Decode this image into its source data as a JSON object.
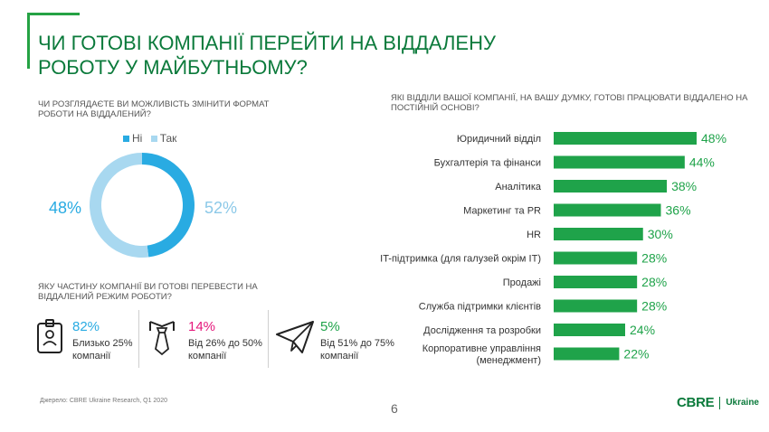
{
  "title": "ЧИ ГОТОВІ КОМПАНІЇ ПЕРЕЙТИ НА ВІДДАЛЕНУ РОБОТУ У МАЙБУТНЬОМУ?",
  "colors": {
    "brand": "#0b7a3b",
    "bar": "#1fa34a",
    "no": "#29abe2",
    "yes": "#a8d8f0",
    "pink": "#e5177b"
  },
  "donut": {
    "question": "ЧИ РОЗГЛЯДАЄТЕ ВИ МОЖЛИВІСТЬ ЗМІНИТИ ФОРМАТ РОБОТИ НА ВІДДАЛЕНИЙ?",
    "legend_no": "Ні",
    "legend_yes": "Так",
    "no_label": "48%",
    "yes_label": "52%"
  },
  "share": {
    "question": "ЯКУ ЧАСТИНУ КОМПАНІЇ ВИ ГОТОВІ ПЕРЕВЕСТИ НА ВІДДАЛЕНИЙ РЕЖИМ РОБОТИ?",
    "items": [
      {
        "pct": "82%",
        "line1": "Близько 25%",
        "line2": "компанії",
        "icon": "id-badge-icon"
      },
      {
        "pct": "14%",
        "line1": "Від 26% до 50%",
        "line2": "компанії",
        "icon": "bowtie-icon"
      },
      {
        "pct": "5%",
        "line1": "Від 51% до 75%",
        "line2": "компанії",
        "icon": "paper-plane-icon"
      }
    ]
  },
  "bars_question": "ЯКІ ВІДДІЛИ ВАШОЇ КОМПАНІЇ, НА ВАШУ ДУМКУ, ГОТОВІ ПРАЦЮВАТИ ВІДДАЛЕНО НА ПОСТІЙНІЙ ОСНОВІ?",
  "chart_data": [
    {
      "type": "pie",
      "categories": [
        "Ні",
        "Так"
      ],
      "values": [
        48,
        52
      ],
      "unit": "%",
      "legend": "top"
    },
    {
      "type": "bar",
      "orientation": "horizontal",
      "categories": [
        "Юридичний відділ",
        "Бухгалтерія та фінанси",
        "Аналітика",
        "Маркетинг та PR",
        "HR",
        "IT-підтримка (для галузей окрім IT)",
        "Продажі",
        "Служба підтримки клієнтів",
        "Дослідження та розробки",
        "Корпоративне управління (менеджмент)"
      ],
      "values": [
        48,
        44,
        38,
        36,
        30,
        28,
        28,
        28,
        24,
        22
      ],
      "value_labels": [
        "48%",
        "44%",
        "38%",
        "36%",
        "30%",
        "28%",
        "28%",
        "28%",
        "24%",
        "22%"
      ],
      "unit": "%",
      "xlim": [
        0,
        48
      ]
    }
  ],
  "footer": {
    "source": "Джерело: CBRE Ukraine Research, Q1 2020",
    "page": "6",
    "logo": "CBRE",
    "logo_sub": "Ukraine"
  }
}
